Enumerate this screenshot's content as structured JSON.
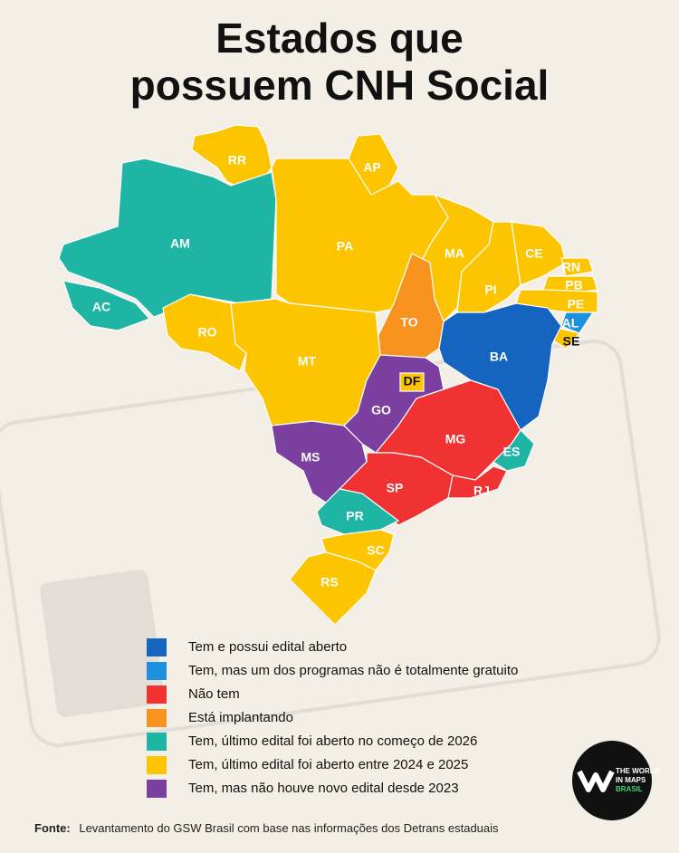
{
  "title": [
    "Estados que",
    "possuem CNH Social"
  ],
  "categories": [
    {
      "label": "Tem e possui edital aberto",
      "color": "#1565c0"
    },
    {
      "label": "Tem, mas um dos programas não é totalmente gratuito",
      "color": "#1e90e0"
    },
    {
      "label": "Não tem",
      "color": "#f03232"
    },
    {
      "label": "Está implantando",
      "color": "#f7931e"
    },
    {
      "label": "Tem, último edital foi aberto no começo de 2026",
      "color": "#1fb5a5"
    },
    {
      "label": "Tem, último edital foi aberto entre 2024 e 2025",
      "color": "#fcc500"
    },
    {
      "label": "Tem, mas não houve novo edital desde 2023",
      "color": "#7b3fa0"
    }
  ],
  "states": [
    {
      "label": "RR",
      "category": 5
    },
    {
      "label": "AP",
      "category": 5
    },
    {
      "label": "AM",
      "category": 4
    },
    {
      "label": "AC",
      "category": 4
    },
    {
      "label": "PA",
      "category": 5
    },
    {
      "label": "MA",
      "category": 5
    },
    {
      "label": "PI",
      "category": 5
    },
    {
      "label": "CE",
      "category": 5
    },
    {
      "label": "RN",
      "category": 5
    },
    {
      "label": "PB",
      "category": 5
    },
    {
      "label": "PE",
      "category": 5
    },
    {
      "label": "AL",
      "category": 1
    },
    {
      "label": "SE",
      "category": 5
    },
    {
      "label": "TO",
      "category": 3
    },
    {
      "label": "BA",
      "category": 0
    },
    {
      "label": "RO",
      "category": 5
    },
    {
      "label": "MT",
      "category": 5
    },
    {
      "label": "GO",
      "category": 6
    },
    {
      "label": "DF",
      "category": 5
    },
    {
      "label": "MG",
      "category": 2
    },
    {
      "label": "ES",
      "category": 4
    },
    {
      "label": "MS",
      "category": 6
    },
    {
      "label": "SP",
      "category": 2
    },
    {
      "label": "RJ",
      "category": 2
    },
    {
      "label": "PR",
      "category": 4
    },
    {
      "label": "SC",
      "category": 5
    },
    {
      "label": "RS",
      "category": 5
    }
  ],
  "source": {
    "label": "Fonte:",
    "text": "Levantamento do GSW Brasil com base nas informações dos Detrans estaduais"
  },
  "logo": [
    "THE WORLD",
    "IN MAPS",
    "BRASIL"
  ]
}
